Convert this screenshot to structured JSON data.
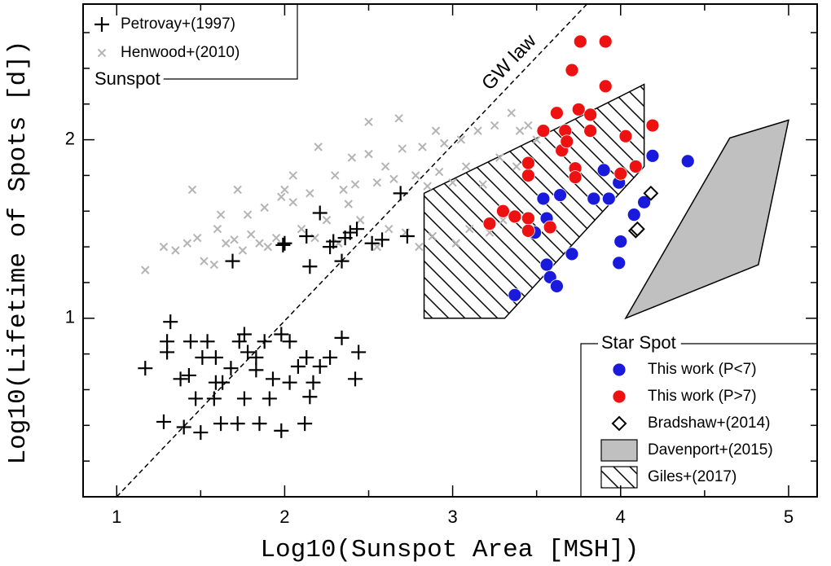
{
  "chart_data": {
    "type": "scatter",
    "xlabel": "Log10(Sunspot Area [MSH])",
    "ylabel": "Log10(Lifetime of Spots [d])",
    "xlim": [
      0.8,
      5.17
    ],
    "ylim": [
      0,
      2.76
    ],
    "xticks": [
      1,
      2,
      3,
      4,
      5
    ],
    "xminor": [
      1.5,
      2.5,
      3.5,
      4.5
    ],
    "yticks": [
      1,
      2
    ],
    "yminor": [
      0.2,
      0.4,
      0.6,
      0.8,
      1.2,
      1.4,
      1.6,
      1.8,
      2.2,
      2.4,
      2.6
    ],
    "legends": [
      {
        "title": "Sunspot",
        "loc": "upper left",
        "entries": [
          0,
          1
        ]
      },
      {
        "title": "Star Spot",
        "loc": "lower right",
        "entries": [
          2,
          3,
          4,
          5,
          6
        ]
      }
    ],
    "series": [
      {
        "name": "Petrovay+(1997)",
        "marker": "plus",
        "color": "#000000",
        "x": [
          2.69,
          2.21,
          1.69,
          2.0,
          1.99,
          2.13,
          2.15,
          2.27,
          2.34,
          2.36,
          2.39,
          2.52,
          2.58,
          2.73,
          2.29,
          2.43,
          1.17,
          1.32,
          1.3,
          1.3,
          1.38,
          1.43,
          1.44,
          1.51,
          1.54,
          1.59,
          1.63,
          1.68,
          1.73,
          1.76,
          1.78,
          1.83,
          1.88,
          1.93,
          1.98,
          2.03,
          2.08,
          2.13,
          2.17,
          2.21,
          2.27,
          2.34,
          2.44,
          2.42,
          1.28,
          1.4,
          1.5,
          1.58,
          1.72,
          1.85,
          1.98,
          2.12,
          1.62,
          1.47,
          1.91,
          2.15,
          1.76,
          1.83,
          1.59,
          2.03
        ],
        "y": [
          1.7,
          1.59,
          1.32,
          1.42,
          1.41,
          1.46,
          1.29,
          1.4,
          1.32,
          1.45,
          1.48,
          1.42,
          1.44,
          1.46,
          1.43,
          1.5,
          0.72,
          0.98,
          0.87,
          0.81,
          0.66,
          0.68,
          0.87,
          0.78,
          0.87,
          0.78,
          0.64,
          0.72,
          0.87,
          0.91,
          0.81,
          0.78,
          0.87,
          0.66,
          0.91,
          0.87,
          0.73,
          0.78,
          0.64,
          0.73,
          0.78,
          0.89,
          0.81,
          0.66,
          0.42,
          0.39,
          0.36,
          0.55,
          0.41,
          0.41,
          0.37,
          0.41,
          0.41,
          0.55,
          0.55,
          0.56,
          0.55,
          0.71,
          0.64,
          0.64
        ]
      },
      {
        "name": "Henwood+(2010)",
        "marker": "x",
        "color": "#b4b4b4",
        "x": [
          1.17,
          1.28,
          1.35,
          1.42,
          1.48,
          1.52,
          1.6,
          1.65,
          1.7,
          1.75,
          1.8,
          1.85,
          1.9,
          1.95,
          1.45,
          1.72,
          1.62,
          1.78,
          1.88,
          1.98,
          2.05,
          2.1,
          2.18,
          2.25,
          2.3,
          2.35,
          2.4,
          2.42,
          2.45,
          2.5,
          2.55,
          2.6,
          2.62,
          2.65,
          2.7,
          2.72,
          2.78,
          2.82,
          2.85,
          2.88,
          2.92,
          2.95,
          3.0,
          3.02,
          3.05,
          3.08,
          3.1,
          3.15,
          3.18,
          3.22,
          3.25,
          3.28,
          3.3,
          3.35,
          3.38,
          3.4,
          3.45,
          3.5,
          2.2,
          2.05,
          2.5,
          2.68,
          2.9,
          2.32,
          2.55,
          2.8,
          1.58,
          2.0,
          2.15,
          2.38
        ],
        "y": [
          1.27,
          1.4,
          1.38,
          1.42,
          1.45,
          1.32,
          1.5,
          1.42,
          1.44,
          1.38,
          1.47,
          1.42,
          1.4,
          1.45,
          1.72,
          1.72,
          1.58,
          1.58,
          1.62,
          1.68,
          1.65,
          1.5,
          1.45,
          1.55,
          1.8,
          1.72,
          1.9,
          1.75,
          1.55,
          1.92,
          1.76,
          1.85,
          1.5,
          1.78,
          1.95,
          1.48,
          1.8,
          1.96,
          1.74,
          1.46,
          1.82,
          1.98,
          1.76,
          1.42,
          2.0,
          1.85,
          1.5,
          2.05,
          1.75,
          1.48,
          2.08,
          1.9,
          1.55,
          2.15,
          1.85,
          2.05,
          2.08,
          2.0,
          1.96,
          1.8,
          2.1,
          2.12,
          2.05,
          1.42,
          1.4,
          1.4,
          1.3,
          1.72,
          1.7,
          1.64
        ]
      },
      {
        "name": "This work (P<7)",
        "marker": "circle",
        "color": "#1a1adc",
        "x": [
          3.37,
          3.49,
          3.54,
          3.56,
          3.56,
          3.58,
          3.62,
          3.64,
          3.71,
          3.84,
          3.9,
          3.93,
          3.99,
          4.0,
          3.99,
          4.08,
          4.14,
          4.19,
          4.4
        ],
        "y": [
          1.13,
          1.48,
          1.67,
          1.56,
          1.3,
          1.23,
          1.18,
          1.69,
          1.36,
          1.67,
          1.83,
          1.67,
          1.76,
          1.43,
          1.31,
          1.58,
          1.65,
          1.91,
          1.88
        ]
      },
      {
        "name": "This work (P>7)",
        "marker": "circle",
        "color": "#ee1111",
        "x": [
          3.22,
          3.3,
          3.37,
          3.45,
          3.45,
          3.58,
          3.45,
          3.45,
          3.54,
          3.62,
          3.67,
          3.65,
          3.68,
          3.73,
          3.73,
          3.75,
          3.82,
          3.82,
          3.91,
          3.91,
          3.76,
          3.71,
          4.03,
          4.09,
          4.0,
          4.19
        ],
        "y": [
          1.53,
          1.6,
          1.57,
          1.56,
          1.49,
          1.51,
          1.8,
          1.87,
          2.05,
          2.15,
          2.05,
          1.94,
          1.99,
          1.84,
          1.79,
          2.17,
          2.05,
          2.14,
          2.55,
          2.3,
          2.55,
          2.39,
          2.02,
          1.85,
          1.81,
          2.08
        ]
      },
      {
        "name": "Bradshaw+(2014)",
        "marker": "diamond",
        "color": "#000000",
        "x": [
          4.09,
          4.18,
          4.1
        ],
        "y": [
          1.49,
          1.7,
          1.5
        ]
      },
      {
        "name": "Davenport+(2015)",
        "marker": "polygon-filled",
        "color": "#c0c0c0",
        "x": [
          4.03,
          4.65,
          5.0,
          4.82
        ],
        "y": [
          1.0,
          2.01,
          2.11,
          1.3
        ]
      },
      {
        "name": "Giles+(2017)",
        "marker": "polygon-hatched",
        "color": "#000000",
        "x": [
          2.83,
          2.83,
          3.59,
          4.14,
          4.14,
          3.31
        ],
        "y": [
          1.0,
          1.7,
          2.05,
          2.31,
          1.85,
          1.0
        ]
      },
      {
        "name": "GW law",
        "marker": "dashed-line",
        "color": "#000000",
        "x": [
          1,
          3.82
        ],
        "y": [
          0,
          2.78
        ]
      }
    ]
  }
}
